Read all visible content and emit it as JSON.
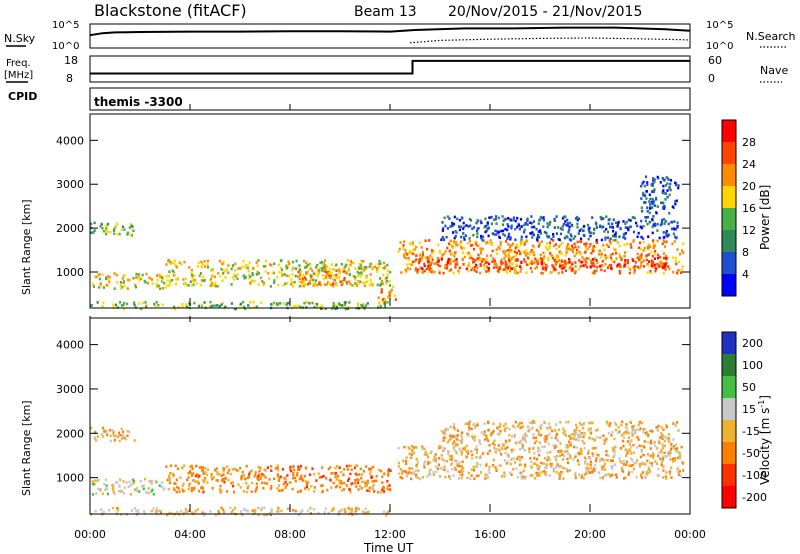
{
  "header": {
    "station": "Blackstone (fitACF)",
    "beam": "Beam 13",
    "dates": "20/Nov/2015 - 21/Nov/2015"
  },
  "sky_panel": {
    "left_label": "N.Sky",
    "right_label": "N.Search",
    "left_ticks": [
      "10^5",
      "10^0"
    ],
    "right_ticks": [
      "10^5",
      "10^0"
    ],
    "nsky": [
      [
        0,
        2.7
      ],
      [
        0.5,
        3.2
      ],
      [
        1,
        3.4
      ],
      [
        2,
        3.5
      ],
      [
        4,
        3.6
      ],
      [
        6,
        3.6
      ],
      [
        8,
        3.7
      ],
      [
        10,
        3.7
      ],
      [
        12,
        3.6
      ],
      [
        13,
        4.0
      ],
      [
        15,
        4.4
      ],
      [
        17,
        4.4
      ],
      [
        19,
        4.6
      ],
      [
        21,
        4.6
      ],
      [
        23,
        4.2
      ],
      [
        24,
        3.8
      ]
    ],
    "nsearch": [
      [
        12.8,
        0.8
      ],
      [
        14,
        1.4
      ],
      [
        16,
        1.7
      ],
      [
        18,
        1.9
      ],
      [
        20,
        2.0
      ],
      [
        22,
        1.8
      ],
      [
        23.5,
        1.6
      ],
      [
        24,
        1.5
      ]
    ]
  },
  "freq_panel": {
    "left_label_1": "Freq.",
    "left_label_2": "[MHz]",
    "right_label": "Nave",
    "left_ticks": [
      "18",
      "8"
    ],
    "right_ticks": [
      "60",
      "0"
    ],
    "freq": [
      [
        0,
        10.5
      ],
      [
        12.9,
        10.5
      ],
      [
        12.9,
        17.5
      ],
      [
        24,
        17.5
      ]
    ]
  },
  "cpid": {
    "label": "CPID",
    "mode": "themis -3300"
  },
  "power_panel": {
    "ylabel": "Slant Range [km]",
    "yticks": [
      "1000",
      "2000",
      "3000",
      "4000"
    ],
    "ytick_values": [
      1000,
      2000,
      3000,
      4000
    ],
    "colorbar_label": "Power [dB]",
    "colorbar_ticks": [
      "4",
      "8",
      "12",
      "16",
      "20",
      "24",
      "28"
    ],
    "colors": [
      "#0000ff",
      "#2050d0",
      "#2e8b57",
      "#48b048",
      "#ffd700",
      "#ff8c00",
      "#ff4500",
      "#ff0000"
    ]
  },
  "velocity_panel": {
    "ylabel": "Slant Range [km]",
    "yticks": [
      "1000",
      "2000",
      "3000",
      "4000"
    ],
    "ytick_values": [
      1000,
      2000,
      3000,
      4000
    ],
    "colorbar_label": "Velocity [m s",
    "colorbar_label_sup": "-1",
    "colorbar_label_end": "]",
    "colorbar_ticks": [
      "200",
      "100",
      "50",
      "15",
      "-15",
      "-50",
      "-100",
      "-200"
    ],
    "colors": [
      "#2030c0",
      "#2e7d32",
      "#43c043",
      "#c8c8c8",
      "#f0b030",
      "#ff8000",
      "#ff3000",
      "#ff0000"
    ]
  },
  "xaxis": {
    "label": "Time UT",
    "ticks": [
      "00:00",
      "04:00",
      "08:00",
      "12:00",
      "16:00",
      "20:00",
      "00:00"
    ],
    "tick_hours": [
      0,
      4,
      8,
      12,
      16,
      20,
      24
    ]
  },
  "chart_data": [
    {
      "type": "line",
      "title": "Blackstone (fitACF) Beam 13 20/Nov/2015 - 21/Nov/2015",
      "xlabel": "Time UT",
      "ylabel": "N.Sky / N.Search",
      "xlim": [
        0,
        24
      ],
      "ylim": [
        0,
        5
      ],
      "series": [
        {
          "name": "N.Sky",
          "x": [
            0,
            0.5,
            1,
            2,
            4,
            6,
            8,
            10,
            12,
            13,
            15,
            17,
            19,
            21,
            23,
            24
          ],
          "y": [
            2.7,
            3.2,
            3.4,
            3.5,
            3.6,
            3.6,
            3.7,
            3.7,
            3.6,
            4.0,
            4.4,
            4.4,
            4.6,
            4.6,
            4.2,
            3.8
          ]
        },
        {
          "name": "N.Search",
          "x": [
            12.8,
            14,
            16,
            18,
            20,
            22,
            23.5,
            24
          ],
          "y": [
            0.8,
            1.4,
            1.7,
            1.9,
            2.0,
            1.8,
            1.6,
            1.5
          ]
        }
      ]
    },
    {
      "type": "line",
      "xlabel": "Time UT",
      "ylabel": "Freq. [MHz]",
      "xlim": [
        0,
        24
      ],
      "ylim": [
        8,
        18
      ],
      "series": [
        {
          "name": "Freq.",
          "x": [
            0,
            12.9,
            12.9,
            24
          ],
          "y": [
            10.5,
            10.5,
            17.5,
            17.5
          ]
        }
      ]
    },
    {
      "type": "heatmap",
      "title": "Power [dB]",
      "xlabel": "Time UT",
      "ylabel": "Slant Range [km]",
      "xlim": [
        0,
        24
      ],
      "ylim": [
        180,
        4600
      ],
      "colorbar_range": [
        0,
        32
      ],
      "bands": [
        {
          "t0": 0.0,
          "t1": 1.8,
          "r0": 1850,
          "r1": 2150,
          "level": 3
        },
        {
          "t0": 0.0,
          "t1": 3.0,
          "r0": 650,
          "r1": 1000,
          "level": 4
        },
        {
          "t0": 3.0,
          "t1": 12.0,
          "r0": 700,
          "r1": 1300,
          "level": 4
        },
        {
          "t0": 0.0,
          "t1": 12.0,
          "r0": 180,
          "r1": 350,
          "level": 3
        },
        {
          "t0": 8.2,
          "t1": 10.2,
          "r0": 700,
          "r1": 1100,
          "level": 5
        },
        {
          "t0": 11.5,
          "t1": 12.3,
          "r0": 350,
          "r1": 700,
          "level": 5
        },
        {
          "t0": 12.3,
          "t1": 23.7,
          "r0": 1000,
          "r1": 1750,
          "level": 5
        },
        {
          "t0": 13.0,
          "t1": 23.0,
          "r0": 1100,
          "r1": 1350,
          "level": 6
        },
        {
          "t0": 14.0,
          "t1": 23.5,
          "r0": 1750,
          "r1": 2300,
          "level": 1
        },
        {
          "t0": 22.0,
          "t1": 23.5,
          "r0": 2300,
          "r1": 3200,
          "level": 1
        }
      ]
    },
    {
      "type": "heatmap",
      "title": "Velocity [m s-1]",
      "xlabel": "Time UT",
      "ylabel": "Slant Range [km]",
      "xlim": [
        0,
        24
      ],
      "ylim": [
        180,
        4600
      ],
      "colorbar_range": [
        -250,
        250
      ],
      "bands": [
        {
          "t0": 0.0,
          "t1": 1.8,
          "r0": 1850,
          "r1": 2150,
          "velocity": 0
        },
        {
          "t0": 0.0,
          "t1": 3.0,
          "r0": 650,
          "r1": 1000,
          "velocity": 30
        },
        {
          "t0": 3.0,
          "t1": 8.0,
          "r0": 700,
          "r1": 1300,
          "velocity": -20
        },
        {
          "t0": 8.0,
          "t1": 12.0,
          "r0": 700,
          "r1": 1300,
          "velocity": -30
        },
        {
          "t0": 0.0,
          "t1": 12.0,
          "r0": 180,
          "r1": 350,
          "velocity": 10
        },
        {
          "t0": 12.3,
          "t1": 23.7,
          "r0": 1000,
          "r1": 1750,
          "velocity": 0
        },
        {
          "t0": 14.0,
          "t1": 23.5,
          "r0": 1750,
          "r1": 2300,
          "velocity": 0
        }
      ]
    }
  ]
}
